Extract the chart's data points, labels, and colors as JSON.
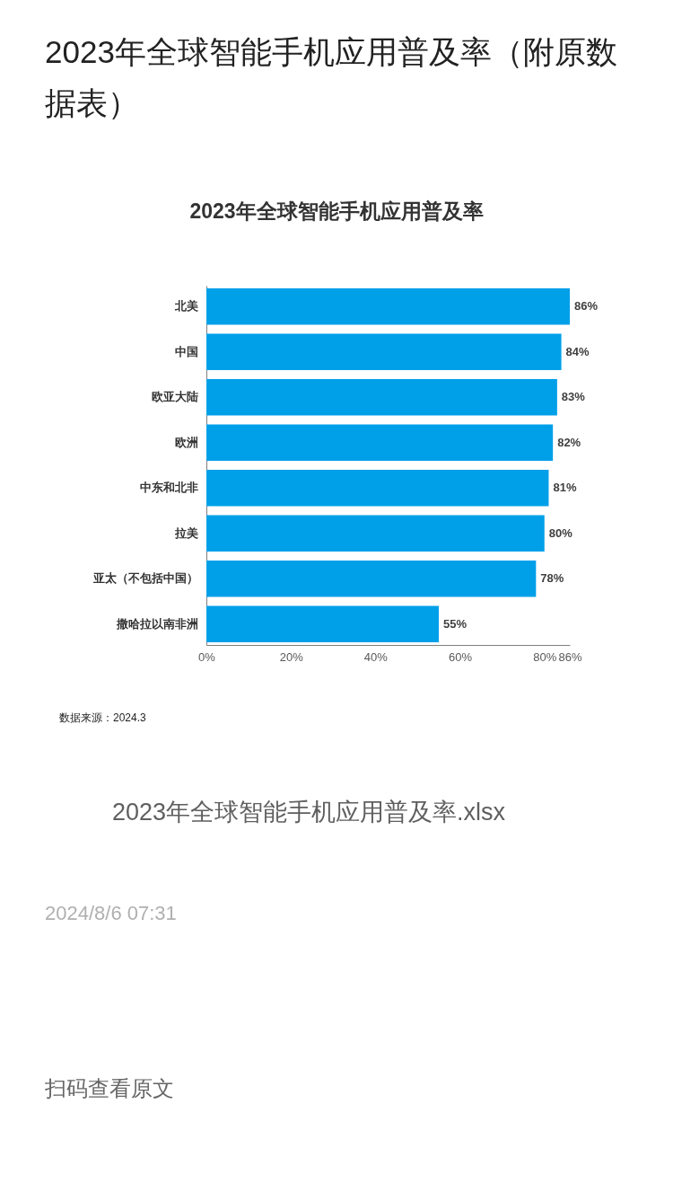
{
  "chart_data": {
    "type": "bar",
    "orientation": "horizontal",
    "title": "2023年全球智能手机应用普及率（附原数据表）",
    "subtitle": "2023年全球智能手机应用普及率",
    "categories": [
      "北美",
      "中国",
      "欧亚大陆",
      "欧洲",
      "中东和北非",
      "拉美",
      "亚太（不包括中国）",
      "撒哈拉以南非洲"
    ],
    "values": [
      86,
      84,
      83,
      82,
      81,
      80,
      78,
      55
    ],
    "value_labels": [
      "86%",
      "84%",
      "83%",
      "82%",
      "81%",
      "80%",
      "78%",
      "55%"
    ],
    "color": "#00a0e9",
    "xlim": [
      0,
      86
    ],
    "xticks": [
      {
        "value": 0,
        "label": "0%"
      },
      {
        "value": 20,
        "label": "20%"
      },
      {
        "value": 40,
        "label": "40%"
      },
      {
        "value": 60,
        "label": "60%"
      },
      {
        "value": 80,
        "label": "80%"
      },
      {
        "value": 86,
        "label": "86%"
      }
    ],
    "annotations": [
      "数据来源：2024.3",
      "2023年全球智能手机应用普及率.xlsx",
      "2024/8/6 07:31",
      "扫码查看原文"
    ]
  }
}
